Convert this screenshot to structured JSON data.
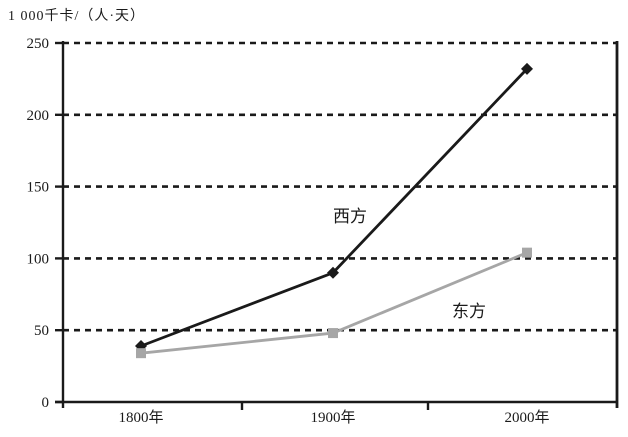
{
  "page": {
    "background": "#ffffff"
  },
  "chart_data": {
    "type": "line",
    "title": "1 000千卡/（人·天）",
    "ylabel": "1 000千卡/（人·天）",
    "xlabel": "",
    "categories": [
      "1800年",
      "1900年",
      "2000年"
    ],
    "series": [
      {
        "name": "西方",
        "values": [
          39,
          90,
          232
        ],
        "color": "#1a1a1a",
        "marker": "diamond"
      },
      {
        "name": "东方",
        "values": [
          34,
          48,
          104
        ],
        "color": "#a6a6a6",
        "marker": "square"
      }
    ],
    "ylim": [
      0,
      250
    ],
    "yticks": [
      0,
      50,
      100,
      150,
      200,
      250
    ],
    "ytick_labels": [
      "0",
      "50",
      "100",
      "150",
      "200",
      "250"
    ],
    "grid": "horizontal dashed black lines at each y tick",
    "legend_position": "inline labels next to lines",
    "axis_color": "#1a1a1a",
    "gridline_style": "dashed"
  }
}
